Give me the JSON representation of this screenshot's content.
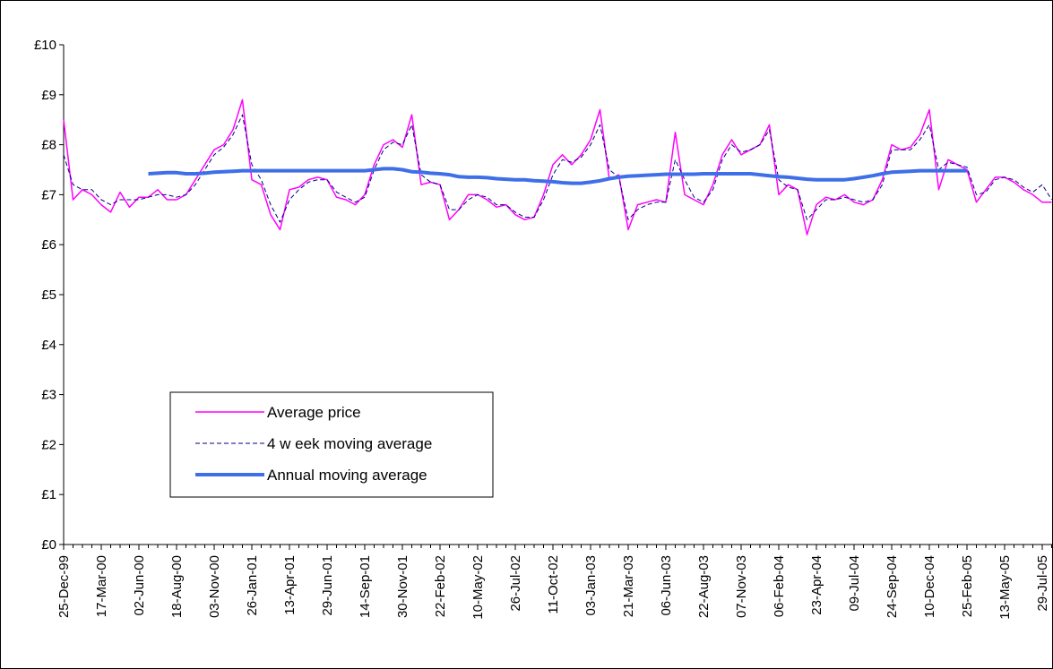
{
  "chart_data": {
    "type": "line",
    "categories": [
      "25-Dec-99",
      null,
      null,
      null,
      "17-Mar-00",
      null,
      null,
      null,
      "02-Jun-00",
      null,
      null,
      null,
      "18-Aug-00",
      null,
      null,
      null,
      "03-Nov-00",
      null,
      null,
      null,
      "26-Jan-01",
      null,
      null,
      null,
      "13-Apr-01",
      null,
      null,
      null,
      "29-Jun-01",
      null,
      null,
      null,
      "14-Sep-01",
      null,
      null,
      null,
      "30-Nov-01",
      null,
      null,
      null,
      "22-Feb-02",
      null,
      null,
      null,
      "10-May-02",
      null,
      null,
      null,
      "26-Jul-02",
      null,
      null,
      null,
      "11-Oct-02",
      null,
      null,
      null,
      "03-Jan-03",
      null,
      null,
      null,
      "21-Mar-03",
      null,
      null,
      null,
      "06-Jun-03",
      null,
      null,
      null,
      "22-Aug-03",
      null,
      null,
      null,
      "07-Nov-03",
      null,
      null,
      null,
      "06-Feb-04",
      null,
      null,
      null,
      "23-Apr-04",
      null,
      null,
      null,
      "09-Jul-04",
      null,
      null,
      null,
      "24-Sep-04",
      null,
      null,
      null,
      "10-Dec-04",
      null,
      null,
      null,
      "25-Feb-05",
      null,
      null,
      null,
      "13-May-05",
      null,
      null,
      null,
      "29-Jul-05",
      null
    ],
    "series": [
      {
        "name": "Average price",
        "color": "#ff00ff",
        "style": "solid",
        "width": 1.5,
        "values": [
          8.5,
          6.9,
          7.1,
          7.0,
          6.8,
          6.65,
          7.05,
          6.75,
          6.95,
          6.95,
          7.1,
          6.9,
          6.9,
          7.0,
          7.3,
          7.6,
          7.9,
          8.0,
          8.3,
          8.9,
          7.3,
          7.2,
          6.6,
          6.3,
          7.1,
          7.15,
          7.3,
          7.35,
          7.3,
          6.95,
          6.9,
          6.8,
          7.0,
          7.6,
          8.0,
          8.1,
          7.95,
          8.6,
          7.2,
          7.25,
          7.2,
          6.5,
          6.7,
          7.0,
          7.0,
          6.9,
          6.75,
          6.8,
          6.6,
          6.5,
          6.55,
          7.0,
          7.6,
          7.8,
          7.6,
          7.8,
          8.1,
          8.7,
          7.3,
          7.4,
          6.3,
          6.8,
          6.85,
          6.9,
          6.85,
          8.25,
          7.0,
          6.9,
          6.8,
          7.2,
          7.8,
          8.1,
          7.8,
          7.9,
          8.0,
          8.4,
          7.0,
          7.2,
          7.1,
          6.2,
          6.8,
          6.95,
          6.9,
          7.0,
          6.85,
          6.8,
          6.9,
          7.3,
          8.0,
          7.9,
          7.95,
          8.2,
          8.7,
          7.1,
          7.7,
          7.6,
          7.5,
          6.85,
          7.1,
          7.35,
          7.35,
          7.25,
          7.1,
          7.0,
          6.85,
          6.85
        ]
      },
      {
        "name": "4 w eek moving average",
        "color": "#000080",
        "style": "dashed",
        "width": 1,
        "values": [
          7.8,
          7.2,
          7.1,
          7.1,
          6.9,
          6.8,
          6.9,
          6.9,
          6.9,
          6.95,
          7.0,
          7.0,
          6.95,
          7.0,
          7.2,
          7.5,
          7.8,
          7.95,
          8.2,
          8.6,
          7.6,
          7.3,
          6.8,
          6.45,
          6.9,
          7.1,
          7.25,
          7.3,
          7.3,
          7.05,
          6.95,
          6.85,
          6.95,
          7.5,
          7.9,
          8.05,
          8.0,
          8.4,
          7.4,
          7.25,
          7.2,
          6.7,
          6.7,
          6.9,
          7.0,
          6.95,
          6.8,
          6.8,
          6.65,
          6.55,
          6.55,
          6.9,
          7.4,
          7.7,
          7.65,
          7.75,
          8.0,
          8.4,
          7.5,
          7.35,
          6.5,
          6.7,
          6.8,
          6.85,
          6.85,
          7.7,
          7.3,
          6.95,
          6.85,
          7.1,
          7.7,
          8.0,
          7.85,
          7.9,
          8.0,
          8.3,
          7.3,
          7.15,
          7.1,
          6.5,
          6.7,
          6.9,
          6.9,
          6.95,
          6.9,
          6.85,
          6.9,
          7.2,
          7.9,
          7.9,
          7.9,
          8.1,
          8.4,
          7.5,
          7.65,
          7.6,
          7.55,
          7.0,
          7.05,
          7.3,
          7.35,
          7.3,
          7.15,
          7.05,
          7.2,
          6.9
        ]
      },
      {
        "name": "Annual moving average",
        "color": "#3f6fe8",
        "style": "solid",
        "width": 4,
        "values": [
          null,
          null,
          null,
          null,
          null,
          null,
          null,
          null,
          null,
          7.42,
          7.43,
          7.44,
          7.44,
          7.42,
          7.42,
          7.43,
          7.45,
          7.46,
          7.47,
          7.48,
          7.48,
          7.48,
          7.48,
          7.48,
          7.48,
          7.48,
          7.48,
          7.48,
          7.48,
          7.48,
          7.48,
          7.48,
          7.48,
          7.5,
          7.52,
          7.52,
          7.5,
          7.46,
          7.45,
          7.43,
          7.42,
          7.4,
          7.36,
          7.35,
          7.35,
          7.34,
          7.32,
          7.31,
          7.3,
          7.3,
          7.28,
          7.27,
          7.26,
          7.24,
          7.23,
          7.23,
          7.25,
          7.28,
          7.32,
          7.35,
          7.37,
          7.38,
          7.39,
          7.4,
          7.41,
          7.41,
          7.41,
          7.41,
          7.42,
          7.42,
          7.42,
          7.42,
          7.42,
          7.42,
          7.4,
          7.38,
          7.36,
          7.35,
          7.33,
          7.31,
          7.3,
          7.3,
          7.3,
          7.3,
          7.32,
          7.35,
          7.38,
          7.42,
          7.45,
          7.46,
          7.47,
          7.48,
          7.48,
          7.48,
          7.48,
          7.48,
          7.48,
          null,
          null,
          null,
          null,
          null,
          null,
          null,
          null,
          null
        ]
      }
    ],
    "ylim": [
      0,
      10
    ],
    "yticks": [
      {
        "value": 0,
        "label": "£0"
      },
      {
        "value": 1,
        "label": "£1"
      },
      {
        "value": 2,
        "label": "£2"
      },
      {
        "value": 3,
        "label": "£3"
      },
      {
        "value": 4,
        "label": "£4"
      },
      {
        "value": 5,
        "label": "£5"
      },
      {
        "value": 6,
        "label": "£6"
      },
      {
        "value": 7,
        "label": "£7"
      },
      {
        "value": 8,
        "label": "£8"
      },
      {
        "value": 9,
        "label": "£9"
      },
      {
        "value": 10,
        "label": "£10"
      }
    ],
    "grid": false
  }
}
